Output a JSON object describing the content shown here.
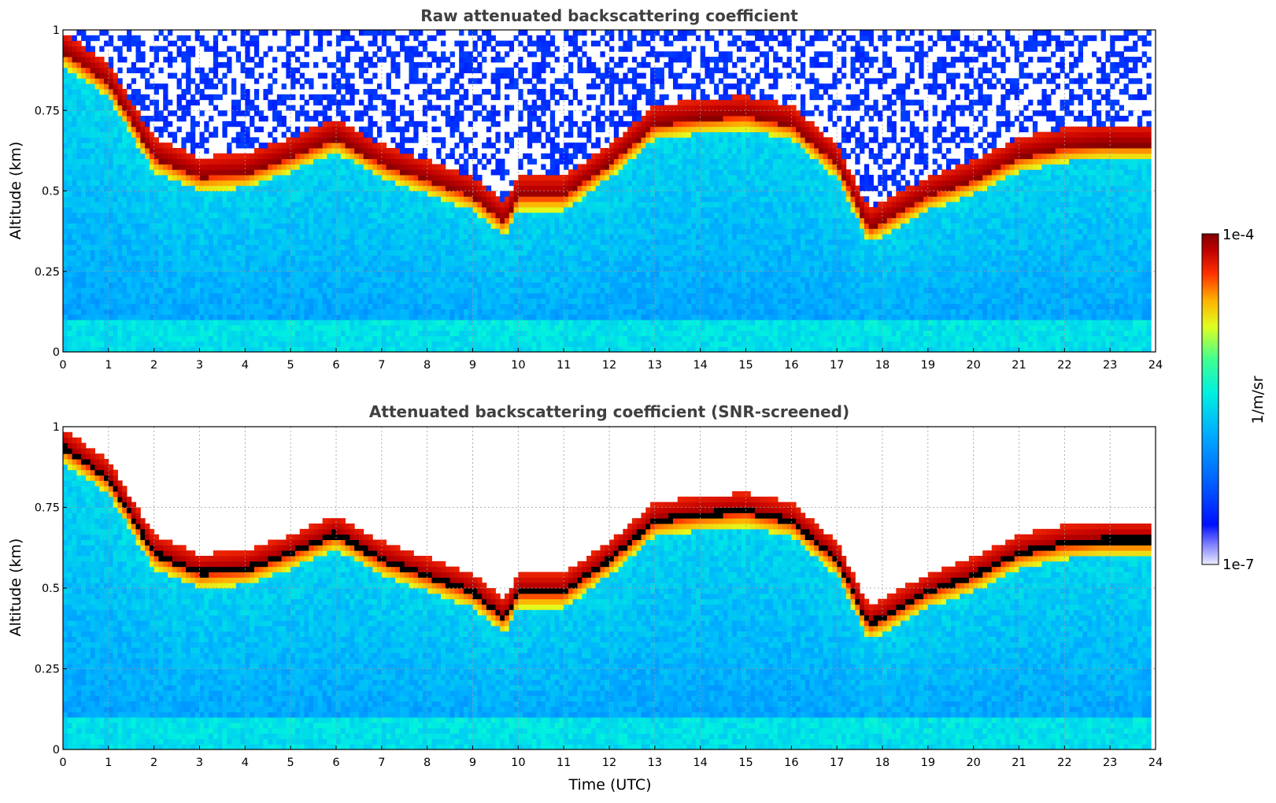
{
  "chart_data": [
    {
      "type": "heatmap",
      "title": "Raw attenuated backscattering coefficient",
      "ylabel": "Altitude (km)",
      "xlabel": "",
      "xlim": [
        0,
        24
      ],
      "ylim": [
        0,
        1
      ],
      "x_ticks": [
        "0",
        "1",
        "2",
        "3",
        "4",
        "5",
        "6",
        "7",
        "8",
        "9",
        "10",
        "11",
        "12",
        "13",
        "14",
        "15",
        "16",
        "17",
        "18",
        "19",
        "20",
        "21",
        "22",
        "23",
        "24"
      ],
      "y_ticks": [
        "0",
        "0.25",
        "0.5",
        "0.75",
        "1"
      ],
      "grid": true,
      "colormap": "jet",
      "screened": false,
      "layer_top_km": [
        {
          "t": 0,
          "z": 0.95
        },
        {
          "t": 1,
          "z": 0.85
        },
        {
          "t": 2,
          "z": 0.62
        },
        {
          "t": 3,
          "z": 0.56
        },
        {
          "t": 4,
          "z": 0.57
        },
        {
          "t": 5,
          "z": 0.62
        },
        {
          "t": 6,
          "z": 0.68
        },
        {
          "t": 7,
          "z": 0.6
        },
        {
          "t": 8,
          "z": 0.55
        },
        {
          "t": 9,
          "z": 0.5
        },
        {
          "t": 9.7,
          "z": 0.42
        },
        {
          "t": 10,
          "z": 0.5
        },
        {
          "t": 11,
          "z": 0.5
        },
        {
          "t": 12,
          "z": 0.6
        },
        {
          "t": 13,
          "z": 0.72
        },
        {
          "t": 14,
          "z": 0.74
        },
        {
          "t": 15,
          "z": 0.75
        },
        {
          "t": 16,
          "z": 0.72
        },
        {
          "t": 17,
          "z": 0.6
        },
        {
          "t": 17.7,
          "z": 0.4
        },
        {
          "t": 18,
          "z": 0.42
        },
        {
          "t": 19,
          "z": 0.5
        },
        {
          "t": 20,
          "z": 0.55
        },
        {
          "t": 21,
          "z": 0.62
        },
        {
          "t": 22,
          "z": 0.65
        },
        {
          "t": 22.8,
          "z": 0.66
        }
      ]
    },
    {
      "type": "heatmap",
      "title": "Attenuated backscattering coefficient (SNR-screened)",
      "ylabel": "Altitude (km)",
      "xlabel": "Time (UTC)",
      "xlim": [
        0,
        24
      ],
      "ylim": [
        0,
        1
      ],
      "x_ticks": [
        "0",
        "1",
        "2",
        "3",
        "4",
        "5",
        "6",
        "7",
        "8",
        "9",
        "10",
        "11",
        "12",
        "13",
        "14",
        "15",
        "16",
        "17",
        "18",
        "19",
        "20",
        "21",
        "22",
        "23",
        "24"
      ],
      "y_ticks": [
        "0",
        "0.25",
        "0.5",
        "0.75",
        "1"
      ],
      "grid": true,
      "colormap": "jet",
      "screened": true
    }
  ],
  "colorbar": {
    "label": "1/m/sr",
    "max_label": "1e-4",
    "min_label": "1e-7",
    "scale": "log",
    "range": [
      1e-07,
      0.0001
    ],
    "colors": [
      "#e8e8ff",
      "#0000ff",
      "#00a0ff",
      "#00e0e0",
      "#20ff90",
      "#ffff00",
      "#ff8000",
      "#ff0000",
      "#800000"
    ]
  }
}
